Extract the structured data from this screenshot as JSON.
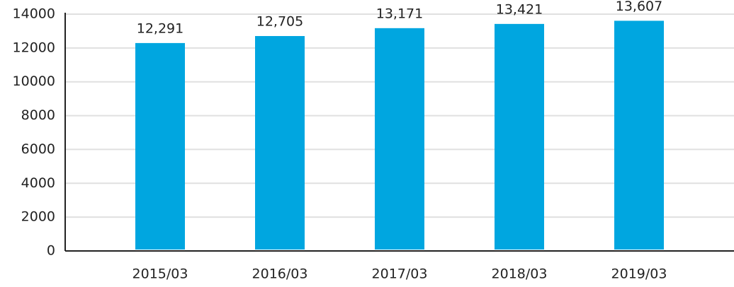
{
  "chart_data": {
    "type": "bar",
    "categories": [
      "2015/03",
      "2016/03",
      "2017/03",
      "2018/03",
      "2019/03"
    ],
    "values": [
      12291,
      12705,
      13171,
      13421,
      13607
    ],
    "value_labels": [
      "12,291",
      "12,705",
      "13,171",
      "13,421",
      "13,607"
    ],
    "color": "#00a6e0",
    "ylim": [
      0,
      14000
    ],
    "yticks": [
      0,
      2000,
      4000,
      6000,
      8000,
      10000,
      12000,
      14000
    ],
    "grid": true
  }
}
